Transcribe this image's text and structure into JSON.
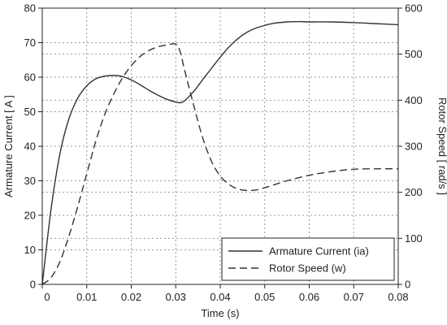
{
  "chart_data": {
    "type": "line",
    "title": "",
    "xlabel": "Time (s)",
    "ylabel_left": "Armature Current  [ A ]",
    "ylabel_right": "Rotor Speed  [ rad/s ]",
    "xlim": [
      0,
      0.08
    ],
    "ylim_left": [
      0,
      80
    ],
    "ylim_right": [
      0,
      600
    ],
    "x_ticks": [
      "0",
      "0.01",
      "0.02",
      "0.03",
      "0.04",
      "0.05",
      "0.06",
      "0.07",
      "0.08"
    ],
    "y_left_ticks": [
      "0",
      "10",
      "20",
      "30",
      "40",
      "50",
      "60",
      "70",
      "80"
    ],
    "y_right_ticks": [
      "0",
      "100",
      "200",
      "300",
      "400",
      "500",
      "600"
    ],
    "grid": true,
    "legend_position": "bottom-right",
    "colors": {
      "series": "#333333",
      "grid": "#999999",
      "axis": "#222222"
    },
    "series": [
      {
        "name": "Armature Current (ia)",
        "axis": "left",
        "style": "solid",
        "x": [
          0,
          0.002,
          0.004,
          0.006,
          0.008,
          0.01,
          0.012,
          0.014,
          0.016,
          0.018,
          0.02,
          0.022,
          0.024,
          0.026,
          0.028,
          0.03,
          0.031,
          0.032,
          0.034,
          0.036,
          0.038,
          0.04,
          0.042,
          0.044,
          0.046,
          0.048,
          0.05,
          0.052,
          0.055,
          0.058,
          0.06,
          0.065,
          0.07,
          0.075,
          0.08
        ],
        "y": [
          0,
          22,
          38,
          48,
          54,
          57.5,
          59.5,
          60.3,
          60.5,
          60.2,
          59.2,
          57.8,
          56.2,
          54.8,
          53.6,
          52.8,
          52.6,
          53.2,
          55.8,
          59.2,
          62.5,
          65.8,
          68.8,
          71.2,
          73.0,
          74.2,
          75.0,
          75.6,
          76.0,
          76.1,
          76.0,
          76.0,
          75.8,
          75.5,
          75.2
        ]
      },
      {
        "name": "Rotor Speed (w)",
        "axis": "right",
        "style": "dashed",
        "x": [
          0,
          0.002,
          0.004,
          0.006,
          0.008,
          0.01,
          0.012,
          0.014,
          0.016,
          0.018,
          0.02,
          0.022,
          0.024,
          0.026,
          0.028,
          0.03,
          0.031,
          0.032,
          0.034,
          0.036,
          0.038,
          0.04,
          0.042,
          0.044,
          0.046,
          0.048,
          0.05,
          0.052,
          0.055,
          0.06,
          0.065,
          0.07,
          0.075,
          0.08
        ],
        "y": [
          0,
          15,
          50,
          105,
          170,
          240,
          310,
          368,
          412,
          448,
          475,
          495,
          508,
          516,
          520,
          522,
          505,
          465,
          390,
          320,
          268,
          235,
          217,
          207,
          204,
          205,
          210,
          216,
          225,
          237,
          245,
          250,
          251,
          251
        ]
      }
    ]
  }
}
